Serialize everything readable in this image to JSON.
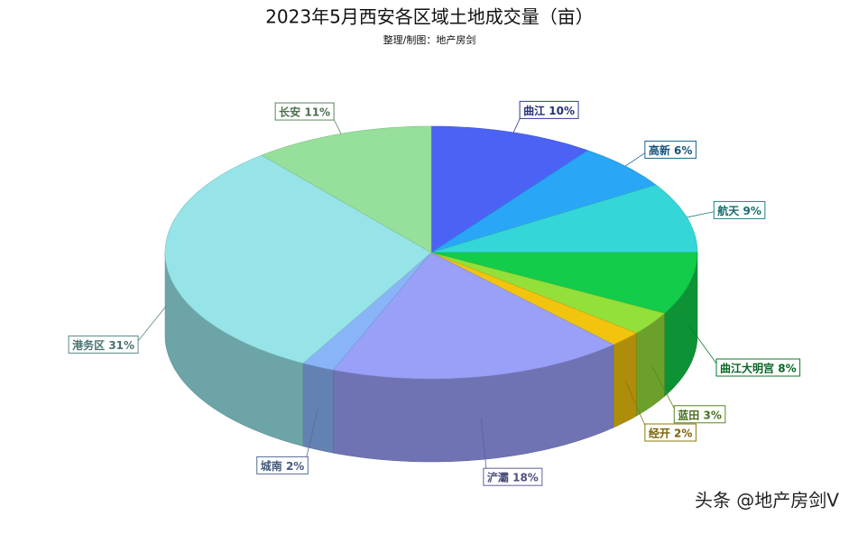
{
  "chart_data": {
    "type": "pie3d",
    "title": "2023年5月西安各区域土地成交量（亩）",
    "subtitle": "整理/制图：地产房剑",
    "watermark": "头条 @地产房剑V",
    "categories": [
      "曲江",
      "高新",
      "航天",
      "曲江大明宫",
      "蓝田",
      "经开",
      "浐灞",
      "城南",
      "港务区",
      "长安"
    ],
    "values": [
      10,
      6,
      9,
      8,
      3,
      2,
      18,
      2,
      31,
      11
    ],
    "value_labels": [
      "10%",
      "6%",
      "9%",
      "8%",
      "3%",
      "2%",
      "18%",
      "2%",
      "31%",
      "11%"
    ],
    "colors": [
      "#4c62f5",
      "#2aa6f7",
      "#35d6d8",
      "#12cc4a",
      "#94e03a",
      "#f2c40e",
      "#9aa0f8",
      "#8ab4f8",
      "#96e4e8",
      "#96e09c"
    ]
  }
}
